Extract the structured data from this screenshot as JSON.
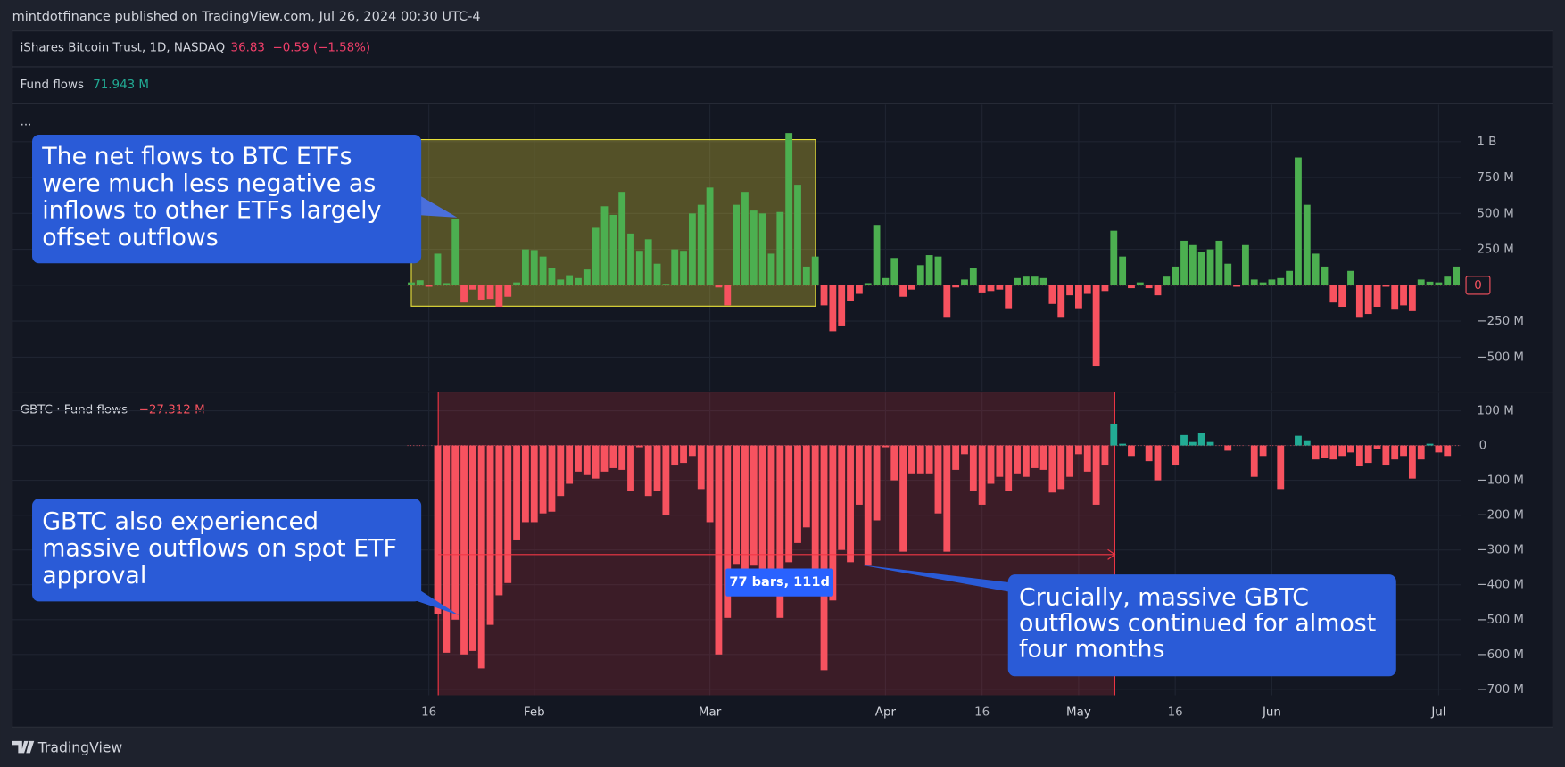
{
  "header": {
    "publisher": "mintdotfinance published on TradingView.com, Jul 26, 2024 00:30 UTC-4",
    "symbol": "iShares Bitcoin Trust, 1D, NASDAQ",
    "price": "36.83",
    "change": "−0.59 (−1.58%)",
    "more": "...",
    "brand": "TradingView"
  },
  "chart_data": [
    {
      "type": "bar",
      "title": "Fund flows",
      "title_value": "71.943 M",
      "up_color": "#4caf50",
      "down_color": "#f7525f",
      "ylim": [
        -736,
        1257
      ],
      "yticks": [
        {
          "value": 1000,
          "label": "1 B"
        },
        {
          "value": 750,
          "label": "750 M"
        },
        {
          "value": 500,
          "label": "500 M"
        },
        {
          "value": 250,
          "label": "250 M"
        },
        0,
        {
          "value": -250,
          "label": "−250 M"
        },
        {
          "value": -500,
          "label": "−500 M"
        }
      ],
      "values": [
        20,
        35,
        -10,
        220,
        15,
        460,
        -120,
        -30,
        -100,
        -95,
        -150,
        -80,
        20,
        250,
        245,
        200,
        120,
        40,
        70,
        50,
        110,
        400,
        550,
        490,
        650,
        360,
        240,
        320,
        150,
        10,
        250,
        240,
        500,
        560,
        680,
        -15,
        -140,
        560,
        650,
        520,
        500,
        220,
        510,
        1060,
        700,
        130,
        200,
        -140,
        -320,
        -280,
        -110,
        -60,
        15,
        420,
        50,
        190,
        -80,
        -30,
        140,
        210,
        200,
        -220,
        -15,
        40,
        120,
        -50,
        -40,
        -30,
        -160,
        50,
        60,
        60,
        50,
        -130,
        -220,
        -70,
        -160,
        -60,
        -560,
        -40,
        380,
        200,
        -20,
        20,
        -20,
        -70,
        60,
        130,
        310,
        280,
        230,
        250,
        310,
        150,
        -10,
        280,
        40,
        20,
        40,
        50,
        100,
        890,
        560,
        220,
        130,
        -120,
        -150,
        100,
        -220,
        -200,
        -150,
        -10,
        -170,
        -140,
        -180,
        40,
        25,
        20,
        60,
        130
      ],
      "grid": true
    },
    {
      "type": "bar",
      "title": "GBTC · Fund flows",
      "title_value": "−27.312 M",
      "up_color": "#22ab94",
      "down_color": "#f7525f",
      "ylim": [
        -717,
        151
      ],
      "yticks": [
        {
          "value": 100,
          "label": "100 M"
        },
        0,
        {
          "value": -100,
          "label": "−100 M"
        },
        {
          "value": -200,
          "label": "−200 M"
        },
        {
          "value": -300,
          "label": "−300 M"
        },
        {
          "value": -400,
          "label": "−400 M"
        },
        {
          "value": -500,
          "label": "−500 M"
        },
        {
          "value": -600,
          "label": "−600 M"
        },
        {
          "value": -700,
          "label": "−700 M"
        }
      ],
      "categories": [
        null,
        null,
        "16",
        null,
        null,
        null,
        null,
        null,
        null,
        null,
        null,
        null,
        null,
        null,
        "Feb",
        null,
        null,
        null,
        null,
        null,
        null,
        null,
        null,
        null,
        null,
        null,
        null,
        null,
        null,
        null,
        null,
        null,
        null,
        null,
        "Mar",
        null,
        null,
        null,
        null,
        null,
        null,
        null,
        null,
        null,
        null,
        null,
        null,
        null,
        null,
        null,
        null,
        null,
        null,
        null,
        "Apr",
        null,
        null,
        null,
        null,
        null,
        null,
        null,
        null,
        null,
        null,
        "16",
        null,
        null,
        null,
        null,
        null,
        null,
        null,
        null,
        null,
        null,
        "May",
        null,
        null,
        null,
        null,
        null,
        null,
        null,
        null,
        null,
        null,
        "16",
        null,
        null,
        null,
        null,
        null,
        null,
        null,
        null,
        null,
        null,
        "Jun",
        null,
        null,
        null,
        null,
        null,
        null,
        null,
        null,
        null,
        null,
        null,
        null,
        null,
        null,
        null,
        null,
        null,
        null,
        "Jul",
        null,
        null
      ],
      "values": [
        null,
        null,
        null,
        -485,
        -595,
        -500,
        -600,
        -590,
        -640,
        -515,
        -430,
        -395,
        -270,
        -220,
        -220,
        -195,
        -190,
        -145,
        -110,
        -75,
        -85,
        -95,
        -75,
        -65,
        -70,
        -130,
        -5,
        -145,
        -130,
        -200,
        -55,
        -50,
        -30,
        -125,
        -220,
        -600,
        -495,
        -340,
        -390,
        -345,
        -375,
        -375,
        -495,
        -335,
        -280,
        -235,
        -430,
        -645,
        -445,
        -300,
        -335,
        -170,
        -345,
        -215,
        -5,
        -100,
        -305,
        -80,
        -80,
        -80,
        -195,
        -305,
        -70,
        -25,
        -130,
        -170,
        -110,
        -90,
        -130,
        -80,
        -90,
        -65,
        -70,
        -135,
        -125,
        -90,
        -25,
        -75,
        -170,
        -55,
        63,
        5,
        -30,
        0,
        -45,
        -100,
        0,
        -55,
        30,
        10,
        35,
        10,
        0,
        -15,
        0,
        0,
        -90,
        -30,
        0,
        -125,
        0,
        28,
        15,
        -40,
        -35,
        -40,
        -30,
        -20,
        -60,
        -50,
        -10,
        -55,
        -40,
        -30,
        -95,
        -40,
        5,
        -20,
        -30,
        null
      ],
      "grid": true
    }
  ],
  "annotations": {
    "top_note": [
      "The net flows to BTC ETFs",
      "were much less negative as",
      "inflows to other ETFs largely",
      "offset outflows"
    ],
    "bottom_note": [
      "GBTC also experienced",
      "massive outflows on spot ETF",
      "approval"
    ],
    "right_note": [
      "Crucially, massive GBTC",
      "outflows continued for almost",
      "four months"
    ],
    "measure": "77 bars, 111d"
  }
}
